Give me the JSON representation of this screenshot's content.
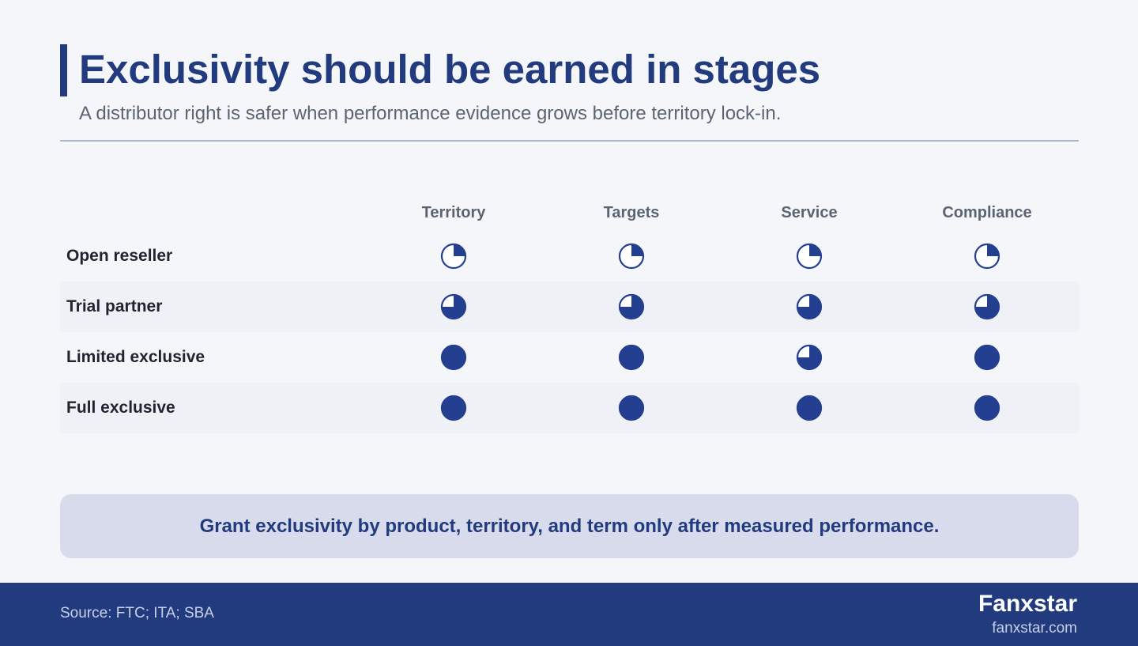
{
  "header": {
    "title": "Exclusivity should be earned in stages",
    "subtitle": "A distributor right is safer when performance evidence grows before territory lock-in."
  },
  "matrix": {
    "columns": [
      "Territory",
      "Targets",
      "Service",
      "Compliance"
    ],
    "rows": [
      {
        "label": "Open reseller",
        "levels": [
          0.25,
          0.25,
          0.25,
          0.25
        ]
      },
      {
        "label": "Trial partner",
        "levels": [
          0.75,
          0.75,
          0.75,
          0.75
        ]
      },
      {
        "label": "Limited exclusive",
        "levels": [
          1,
          1,
          0.75,
          1
        ]
      },
      {
        "label": "Full exclusive",
        "levels": [
          1,
          1,
          1,
          1
        ]
      }
    ],
    "fill_color": "#243f8f"
  },
  "callout": {
    "text": "Grant exclusivity by product, territory, and term only after measured performance."
  },
  "footer": {
    "source": "Source: FTC; ITA; SBA",
    "brand": "Fanxstar",
    "url": "fanxstar.com"
  }
}
